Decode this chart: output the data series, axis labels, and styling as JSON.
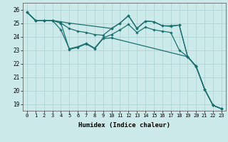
{
  "xlabel": "Humidex (Indice chaleur)",
  "background_color": "#cceaea",
  "grid_color": "#aacfcf",
  "line_color": "#1a7070",
  "xlim_min": -0.5,
  "xlim_max": 23.5,
  "ylim_min": 18.5,
  "ylim_max": 26.5,
  "yticks": [
    19,
    20,
    21,
    22,
    23,
    24,
    25,
    26
  ],
  "xticks": [
    0,
    1,
    2,
    3,
    4,
    5,
    6,
    7,
    8,
    9,
    10,
    11,
    12,
    13,
    14,
    15,
    16,
    17,
    18,
    19,
    20,
    21,
    22,
    23
  ],
  "series": [
    {
      "x": [
        0,
        1,
        2,
        3,
        4,
        5,
        10,
        11,
        12,
        13,
        14,
        15,
        16,
        17,
        18,
        19,
        20,
        21,
        22,
        23
      ],
      "y": [
        25.8,
        25.2,
        25.2,
        25.2,
        25.1,
        25.0,
        24.6,
        25.0,
        25.55,
        24.6,
        25.15,
        25.1,
        24.8,
        24.8,
        24.85,
        22.5,
        21.8,
        20.1,
        18.9,
        18.65
      ]
    },
    {
      "x": [
        0,
        1,
        2,
        3,
        4,
        5,
        6,
        7,
        8,
        9,
        10,
        11,
        12,
        13,
        14,
        15,
        16,
        17,
        18,
        19,
        20,
        21,
        22,
        23
      ],
      "y": [
        25.8,
        25.2,
        25.2,
        25.2,
        25.0,
        24.6,
        24.4,
        24.3,
        24.15,
        24.1,
        24.6,
        25.0,
        25.55,
        24.6,
        25.15,
        25.1,
        24.8,
        24.75,
        24.85,
        22.5,
        21.8,
        20.1,
        18.9,
        18.65
      ]
    },
    {
      "x": [
        0,
        1,
        2,
        3,
        4,
        5,
        6,
        7,
        8,
        9,
        10,
        11,
        12,
        13,
        14,
        15,
        16,
        17,
        18,
        19,
        20,
        21,
        22,
        23
      ],
      "y": [
        25.8,
        25.2,
        25.2,
        25.2,
        24.5,
        23.1,
        23.25,
        23.5,
        23.15,
        23.9,
        24.15,
        24.5,
        24.9,
        24.3,
        24.7,
        24.5,
        24.4,
        24.3,
        23.0,
        22.5,
        21.75,
        20.1,
        18.9,
        18.65
      ]
    },
    {
      "x": [
        0,
        1,
        2,
        3,
        4,
        5,
        6,
        7,
        8,
        9,
        10,
        19,
        20,
        21,
        22,
        23
      ],
      "y": [
        25.8,
        25.2,
        25.2,
        25.2,
        25.0,
        23.05,
        23.2,
        23.45,
        23.1,
        23.85,
        23.9,
        22.5,
        21.8,
        20.1,
        18.9,
        18.65
      ]
    }
  ]
}
